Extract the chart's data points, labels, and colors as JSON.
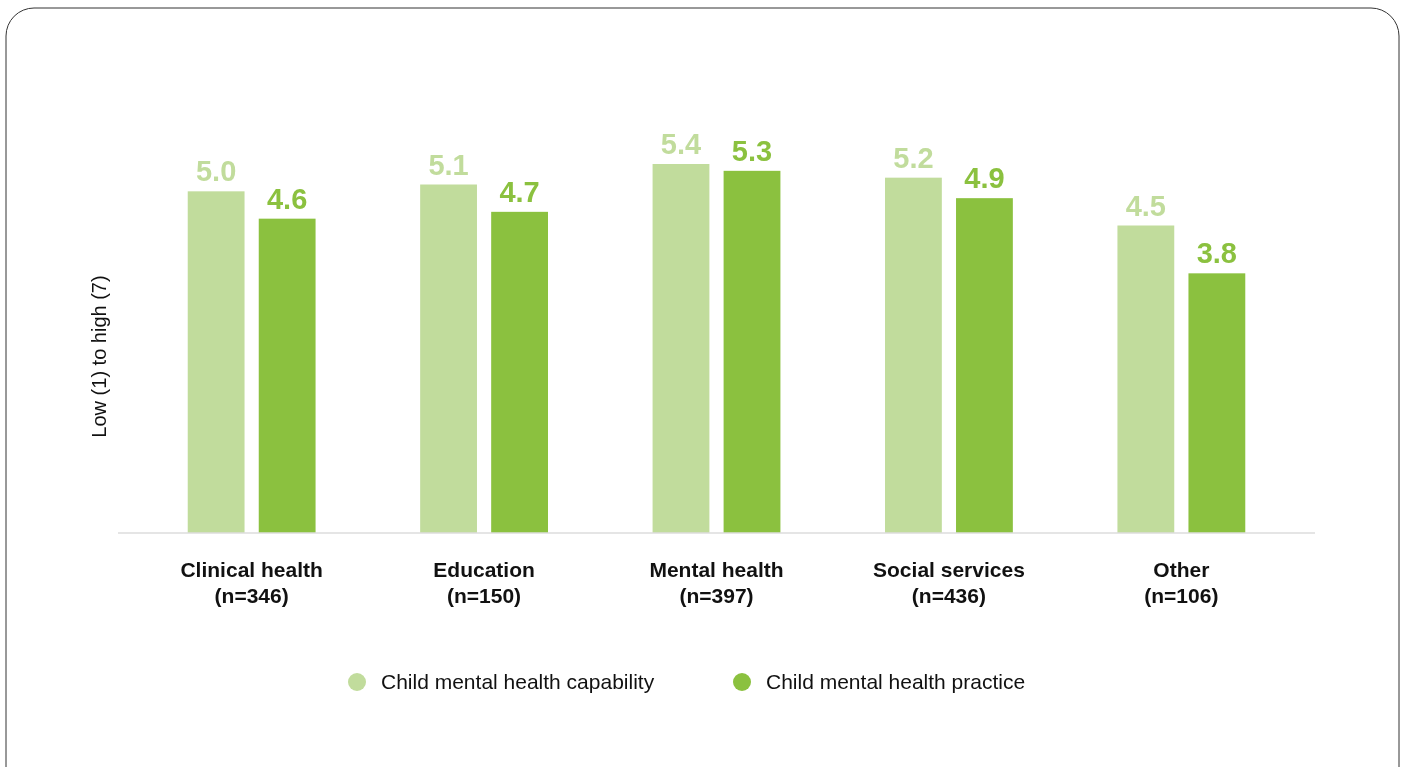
{
  "chart_data": {
    "type": "bar",
    "ylabel": "Low (1) to high (7)",
    "categories": [
      "Clinical health\n(n=346)",
      "Education\n(n=150)",
      "Mental health\n(n=397)",
      "Social services\n(n=436)",
      "Other\n(n=106)"
    ],
    "series": [
      {
        "name": "Child mental health capability",
        "color": "#c1dc9c",
        "values": [
          5.0,
          5.1,
          5.4,
          5.2,
          4.5
        ],
        "value_labels": [
          "5.0",
          "5.1",
          "5.4",
          "5.2",
          "4.5"
        ]
      },
      {
        "name": "Child mental health practice",
        "color": "#8bc13f",
        "values": [
          4.6,
          4.7,
          5.3,
          4.9,
          3.8
        ],
        "value_labels": [
          "4.6",
          "4.7",
          "5.3",
          "4.9",
          "3.8"
        ]
      }
    ],
    "tick_labels": "x",
    "legend": "bottom"
  }
}
